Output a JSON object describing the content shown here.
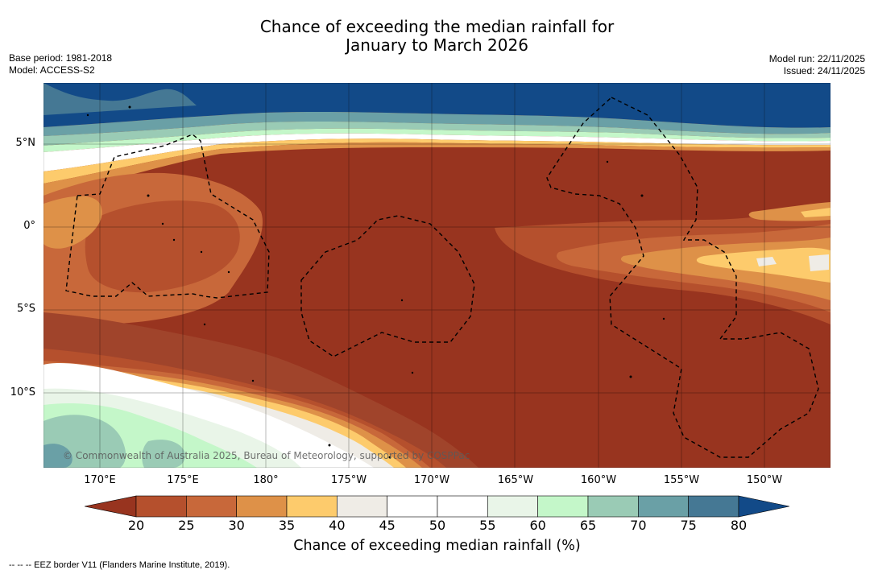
{
  "title": {
    "line1": "Chance of exceeding the median rainfall for",
    "line2": "January to March 2026"
  },
  "meta": {
    "base_period": "Base period: 1981-2018",
    "model": "Model: ACCESS-S2",
    "model_run": "Model run: 22/11/2025",
    "issued": "Issued: 24/11/2025"
  },
  "map": {
    "lat_labels": [
      "5°N",
      "0°",
      "5°S",
      "10°S"
    ],
    "lon_labels": [
      "170°E",
      "175°E",
      "180°",
      "175°W",
      "170°W",
      "165°W",
      "160°W",
      "155°W",
      "150°W"
    ],
    "copyright": "© Commonwealth of Australia 2025, Bureau of Meteorology, supported by COSPPac"
  },
  "colorbar": {
    "ticks": [
      "20",
      "25",
      "30",
      "35",
      "40",
      "45",
      "50",
      "55",
      "60",
      "65",
      "70",
      "75",
      "80"
    ],
    "colors": [
      "#a0442b",
      "#b5502d",
      "#c8683a",
      "#de9148",
      "#fdcb6c",
      "#efece6",
      "#ffffff",
      "#ffffff",
      "#e9f5e8",
      "#c4f7c9",
      "#9acbb5",
      "#6aa0a6",
      "#457894",
      "#114a82"
    ],
    "low_color": "#98341f",
    "high_color": "#124a88",
    "label": "Chance of exceeding median rainfall (%)"
  },
  "footer": {
    "eez_legend": "--  --  -- EEZ border V11 (Flanders Marine Institute, 2019)."
  }
}
